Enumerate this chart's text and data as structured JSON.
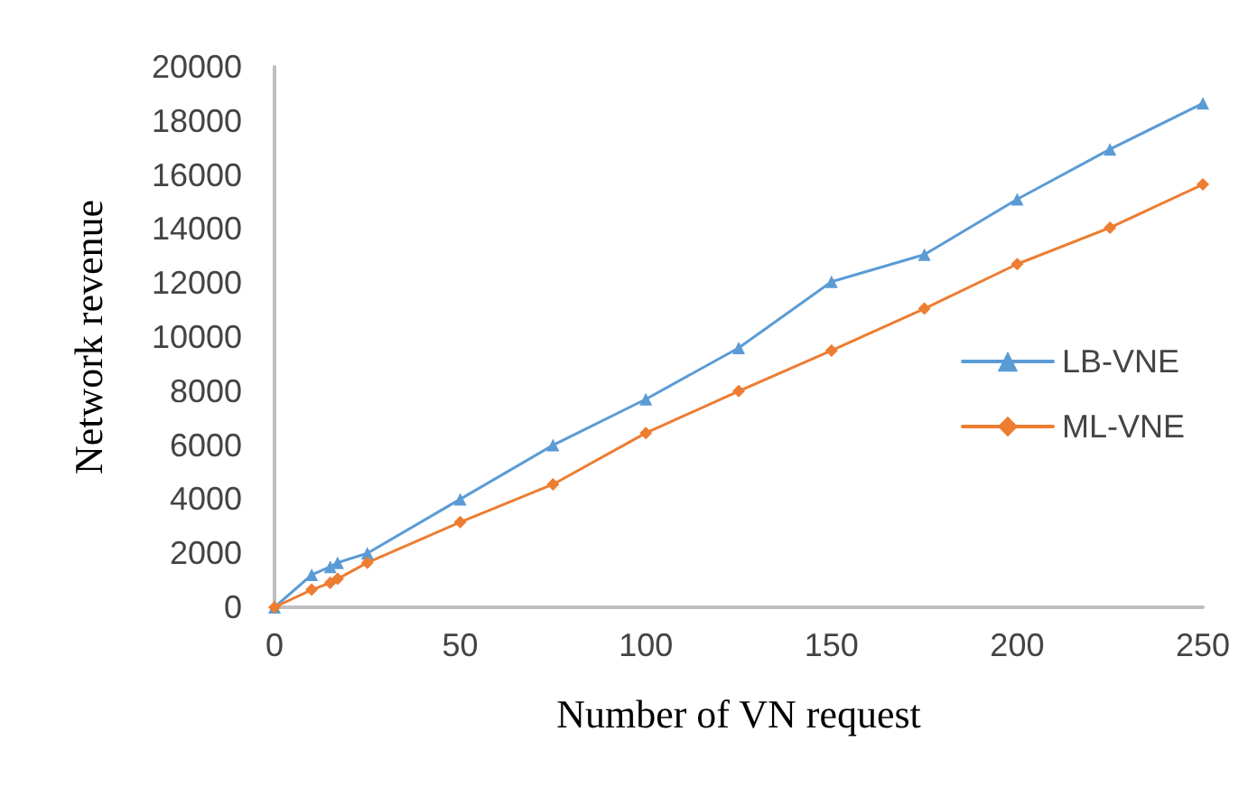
{
  "chart_data": {
    "type": "line",
    "xlabel": "Number of VN request",
    "ylabel": "Network revenue",
    "x": [
      0,
      10,
      15,
      17,
      25,
      50,
      75,
      100,
      125,
      150,
      175,
      200,
      225,
      250
    ],
    "series": [
      {
        "name": "LB-VNE",
        "color": "#5b9bd5",
        "marker": "triangle",
        "values": [
          0,
          1200,
          1500,
          1650,
          2000,
          4000,
          6000,
          7700,
          9600,
          12050,
          13050,
          15100,
          16950,
          18650
        ]
      },
      {
        "name": "ML-VNE",
        "color": "#ed7d31",
        "marker": "diamond",
        "values": [
          0,
          650,
          900,
          1050,
          1650,
          3150,
          4550,
          6450,
          8000,
          9500,
          11050,
          12700,
          14050,
          15650
        ]
      }
    ],
    "xlim": [
      0,
      250
    ],
    "xticks": [
      0,
      50,
      100,
      150,
      200,
      250
    ],
    "ylim": [
      0,
      20000
    ],
    "yticks": [
      0,
      2000,
      4000,
      6000,
      8000,
      10000,
      12000,
      14000,
      16000,
      18000,
      20000
    ],
    "grid": false,
    "legend": "right",
    "line_style": "solid"
  }
}
